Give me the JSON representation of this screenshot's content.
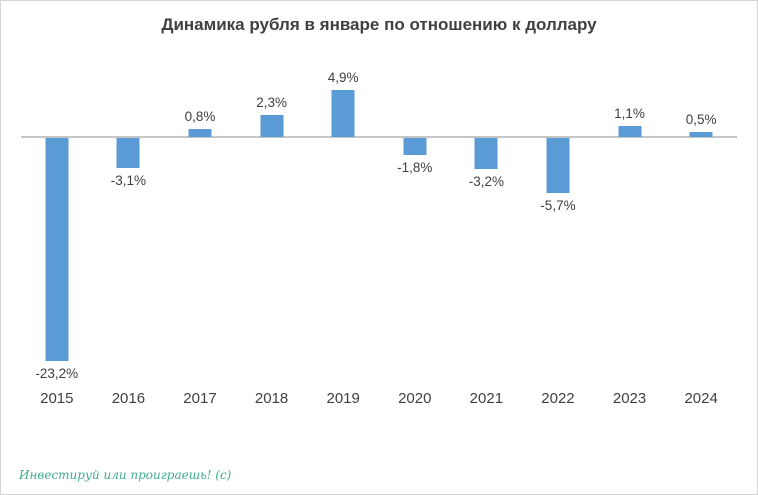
{
  "title": "Динамика рубля в январе по отношению к доллару",
  "watermark": "Инвестируй или проиграешь! (с)",
  "colors": {
    "bar": "#5B9BD5",
    "axis_line": "#C6C6C6",
    "text": "#404040",
    "watermark": "#3FAE8C"
  },
  "chart_data": {
    "type": "bar",
    "title": "Динамика рубля в январе по отношению к доллару",
    "categories": [
      "2015",
      "2016",
      "2017",
      "2018",
      "2019",
      "2020",
      "2021",
      "2022",
      "2023",
      "2024"
    ],
    "values": [
      -23.2,
      -3.1,
      0.8,
      2.3,
      4.9,
      -1.8,
      -3.2,
      -5.7,
      1.1,
      0.5
    ],
    "labels": [
      "-23,2%",
      "-3,1%",
      "0,8%",
      "2,3%",
      "4,9%",
      "-1,8%",
      "-3,2%",
      "-5,7%",
      "1,1%",
      "0,5%"
    ],
    "xlabel": "",
    "ylabel": "",
    "ylim": [
      -25,
      6
    ],
    "grid": false,
    "legend": false,
    "bar_label_position": "outside-end",
    "zero_baseline": true
  }
}
